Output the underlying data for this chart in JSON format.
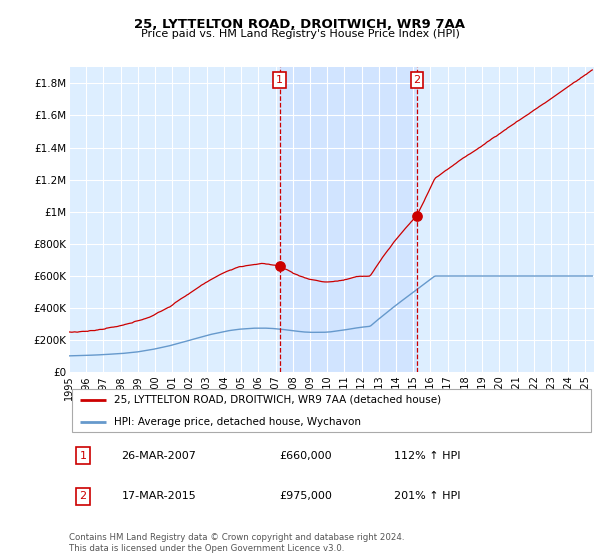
{
  "title1": "25, LYTTELTON ROAD, DROITWICH, WR9 7AA",
  "title2": "Price paid vs. HM Land Registry's House Price Index (HPI)",
  "ylabel_ticks": [
    "£0",
    "£200K",
    "£400K",
    "£600K",
    "£800K",
    "£1M",
    "£1.2M",
    "£1.4M",
    "£1.6M",
    "£1.8M"
  ],
  "ytick_values": [
    0,
    200000,
    400000,
    600000,
    800000,
    1000000,
    1200000,
    1400000,
    1600000,
    1800000
  ],
  "ylim": [
    0,
    1900000
  ],
  "xlim_start": 1995.0,
  "xlim_end": 2025.5,
  "sale1_x": 2007.23,
  "sale1_y": 660000,
  "sale1_label": "1",
  "sale2_x": 2015.21,
  "sale2_y": 975000,
  "sale2_label": "2",
  "sale1_date": "26-MAR-2007",
  "sale1_price": "£660,000",
  "sale1_hpi": "112% ↑ HPI",
  "sale2_date": "17-MAR-2015",
  "sale2_price": "£975,000",
  "sale2_hpi": "201% ↑ HPI",
  "legend_line1": "25, LYTTELTON ROAD, DROITWICH, WR9 7AA (detached house)",
  "legend_line2": "HPI: Average price, detached house, Wychavon",
  "footer": "Contains HM Land Registry data © Crown copyright and database right 2024.\nThis data is licensed under the Open Government Licence v3.0.",
  "red_color": "#cc0000",
  "blue_color": "#6699cc",
  "bg_color": "#ddeeff",
  "shade_color": "#cce0ff",
  "marker_box_color": "#cc0000"
}
